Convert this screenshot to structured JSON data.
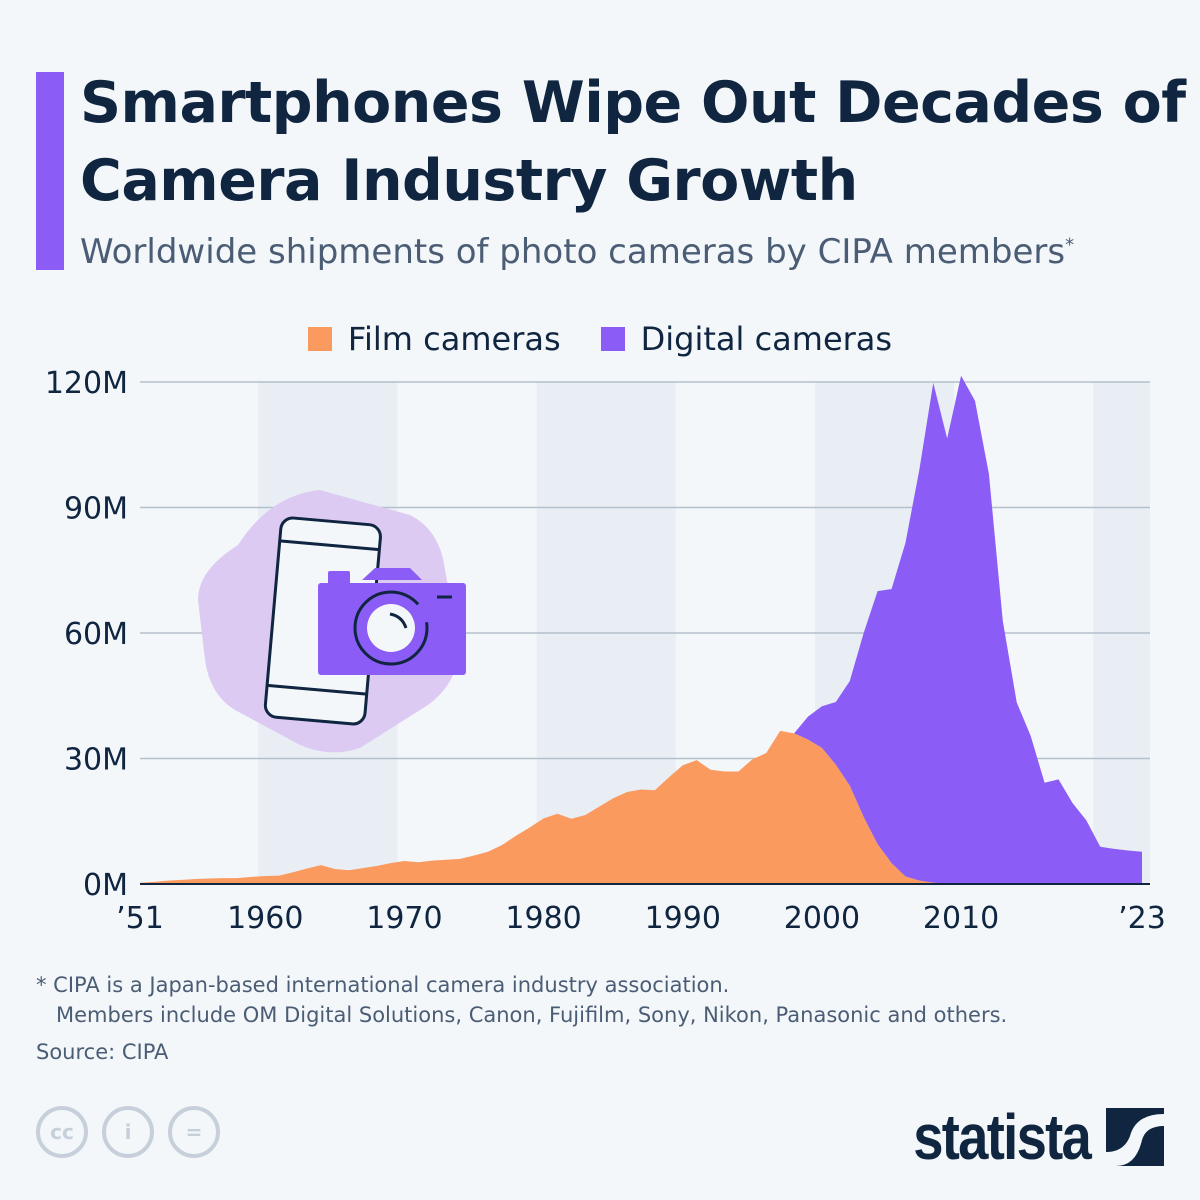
{
  "header": {
    "title": "Smartphones Wipe Out Decades of Camera Industry Growth",
    "subtitle": "Worldwide shipments of photo cameras by CIPA members",
    "subtitle_marker": "*",
    "accent_color": "#8b5cf6"
  },
  "chart_data": {
    "type": "area",
    "stacked": true,
    "legend_position": "top",
    "grid": true,
    "ylim": [
      0,
      120
    ],
    "y_ticks": [
      "0M",
      "30M",
      "60M",
      "90M",
      "120M"
    ],
    "y_tick_values": [
      0,
      30,
      60,
      90,
      120
    ],
    "x_ticks": [
      "’51",
      "1960",
      "1970",
      "1980",
      "1990",
      "2000",
      "2010",
      "’23"
    ],
    "x_tick_values": [
      1951,
      1960,
      1970,
      1980,
      1990,
      2000,
      2010,
      2023
    ],
    "xlim": [
      1951,
      2023
    ],
    "unit": "million units",
    "years": [
      1951,
      1952,
      1953,
      1954,
      1955,
      1956,
      1957,
      1958,
      1959,
      1960,
      1961,
      1962,
      1963,
      1964,
      1965,
      1966,
      1967,
      1968,
      1969,
      1970,
      1971,
      1972,
      1973,
      1974,
      1975,
      1976,
      1977,
      1978,
      1979,
      1980,
      1981,
      1982,
      1983,
      1984,
      1985,
      1986,
      1987,
      1988,
      1989,
      1990,
      1991,
      1992,
      1993,
      1994,
      1995,
      1996,
      1997,
      1998,
      1999,
      2000,
      2001,
      2002,
      2003,
      2004,
      2005,
      2006,
      2007,
      2008,
      2009,
      2010,
      2011,
      2012,
      2013,
      2014,
      2015,
      2016,
      2017,
      2018,
      2019,
      2020,
      2021,
      2022,
      2023
    ],
    "series": [
      {
        "name": "Film cameras",
        "color": "#fb9a5f",
        "values": [
          0.3,
          0.5,
          0.8,
          1.0,
          1.2,
          1.3,
          1.4,
          1.4,
          1.7,
          1.9,
          2.0,
          2.8,
          3.7,
          4.5,
          3.6,
          3.3,
          3.8,
          4.3,
          5.0,
          5.5,
          5.2,
          5.6,
          5.8,
          6.0,
          6.8,
          7.7,
          9.3,
          11.5,
          13.5,
          15.7,
          16.8,
          15.6,
          16.5,
          18.5,
          20.5,
          22.0,
          22.6,
          22.4,
          25.5,
          28.4,
          29.6,
          27.3,
          26.9,
          26.9,
          29.8,
          31.3,
          36.6,
          36.0,
          34.5,
          32.5,
          28.5,
          23.5,
          16.0,
          9.5,
          5.0,
          1.8,
          0.8,
          0.3,
          0,
          0,
          0,
          0,
          0,
          0,
          0,
          0,
          0,
          0,
          0,
          0,
          0,
          0,
          0
        ]
      },
      {
        "name": "Digital cameras",
        "color": "#8b5cf6",
        "values": [
          null,
          null,
          null,
          null,
          null,
          null,
          null,
          null,
          null,
          null,
          null,
          null,
          null,
          null,
          null,
          null,
          null,
          null,
          null,
          null,
          null,
          null,
          null,
          null,
          null,
          null,
          null,
          null,
          null,
          null,
          null,
          null,
          null,
          null,
          null,
          null,
          null,
          null,
          null,
          null,
          null,
          null,
          null,
          null,
          null,
          null,
          null,
          0,
          5.5,
          10.0,
          15.0,
          25.0,
          44.0,
          60.5,
          65.5,
          79.7,
          98.2,
          119.5,
          106.5,
          121.5,
          115.5,
          98.0,
          62.8,
          43.4,
          35.4,
          24.2,
          25.0,
          19.4,
          15.2,
          8.9,
          8.4,
          8.0,
          7.7
        ]
      }
    ]
  },
  "footer": {
    "note_line1": "* CIPA is a Japan-based international camera industry association.",
    "note_line2": "Members include OM Digital Solutions, Canon, Fujifilm, Sony, Nikon, Panasonic and others.",
    "source": "Source: CIPA",
    "logo": "statista",
    "license_icons": [
      "cc-icon",
      "attribution-icon",
      "no-derivatives-icon"
    ]
  }
}
